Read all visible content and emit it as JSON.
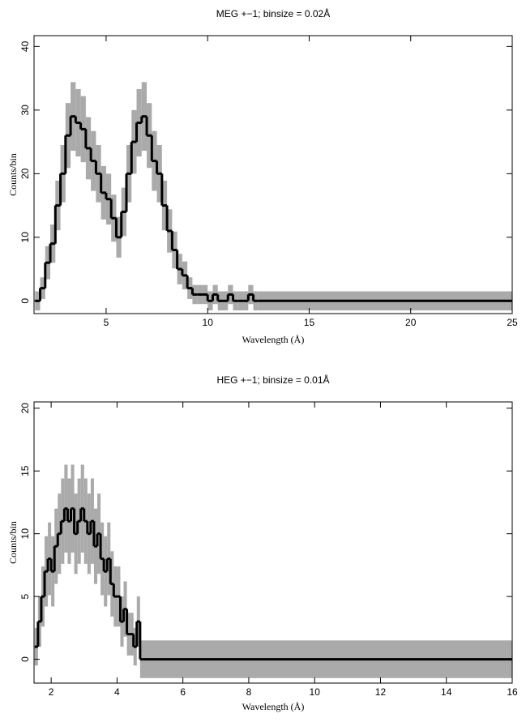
{
  "chart_data": [
    {
      "type": "histogram",
      "title": "MEG +−1; binsize = 0.02Å",
      "x_label": "Wavelength (Å)",
      "y_label": "Counts/bin",
      "xlim": [
        1.45,
        25
      ],
      "ylim": [
        -2,
        41.7
      ],
      "xticks": [
        5,
        10,
        15,
        20,
        25
      ],
      "yticks": [
        0,
        10,
        20,
        30,
        40
      ],
      "series": [
        {
          "color": "#000000",
          "error_color": "#aaaaaa",
          "bins": [
            1.5,
            1.75,
            2,
            2.25,
            2.5,
            2.75,
            3,
            3.25,
            3.5,
            3.75,
            4,
            4.25,
            4.5,
            4.75,
            5,
            5.25,
            5.5,
            5.75,
            6,
            6.25,
            6.5,
            6.75,
            7,
            7.25,
            7.5,
            7.75,
            8,
            8.25,
            8.5,
            8.75,
            9,
            9.25,
            9.5,
            9.75,
            10,
            10.25,
            10.5,
            10.75,
            11,
            11.25,
            11.5,
            11.75,
            12,
            12.25,
            12.5,
            25
          ],
          "values": [
            0,
            2,
            6,
            9,
            15,
            20,
            26,
            29,
            28,
            27,
            24,
            22,
            20,
            17,
            16,
            13,
            10,
            14,
            20,
            25,
            28,
            29,
            26,
            22,
            20,
            15,
            11,
            8,
            5,
            4,
            2,
            1,
            1,
            1,
            0,
            1,
            0,
            0,
            1,
            0,
            0,
            0,
            1,
            0,
            0
          ],
          "errors": [
            1.5,
            1.7,
            2.6,
            3,
            3.9,
            4.5,
            5.1,
            5.4,
            5.3,
            5.2,
            4.9,
            4.7,
            4.5,
            4.2,
            4,
            3.7,
            3.2,
            3.8,
            4.5,
            5,
            5.3,
            5.4,
            5.1,
            4.7,
            4.5,
            3.9,
            3.4,
            2.9,
            2.4,
            2.2,
            1.7,
            1.5,
            1.5,
            1.5,
            1.5,
            1.5,
            1.5,
            1.5,
            1.5,
            1.5,
            1.5,
            1.5,
            1.5,
            1.5,
            1.5
          ]
        }
      ]
    },
    {
      "type": "histogram",
      "title": "HEG +−1; binsize = 0.01Å",
      "x_label": "Wavelength (Å)",
      "y_label": "Counts/bin",
      "xlim": [
        1.48,
        16
      ],
      "ylim": [
        -1.9,
        20.5
      ],
      "xticks": [
        2,
        4,
        6,
        8,
        10,
        12,
        14,
        16
      ],
      "yticks": [
        0,
        5,
        10,
        15,
        20
      ],
      "series": [
        {
          "color": "#000000",
          "error_color": "#aaaaaa",
          "bins": [
            1.5,
            1.6,
            1.7,
            1.8,
            1.9,
            2,
            2.1,
            2.2,
            2.3,
            2.4,
            2.5,
            2.6,
            2.7,
            2.8,
            2.9,
            3,
            3.1,
            3.2,
            3.3,
            3.4,
            3.5,
            3.6,
            3.7,
            3.8,
            3.9,
            4,
            4.1,
            4.2,
            4.3,
            4.4,
            4.5,
            4.6,
            4.7,
            16
          ],
          "values": [
            1,
            3,
            5,
            7,
            8,
            7,
            9,
            10,
            11,
            12,
            11,
            12,
            10,
            11,
            12,
            11,
            10,
            11,
            9,
            10,
            8,
            7,
            8,
            6,
            5,
            5,
            3,
            4,
            2,
            2,
            1,
            3,
            0
          ],
          "errors": [
            1.5,
            2,
            2.4,
            2.8,
            2.9,
            2.8,
            3,
            3.2,
            3.4,
            3.5,
            3.4,
            3.5,
            3.2,
            3.4,
            3.5,
            3.4,
            3.2,
            3.4,
            3,
            3.2,
            2.9,
            2.8,
            2.9,
            2.6,
            2.4,
            2.4,
            2,
            2.2,
            1.7,
            1.7,
            1.5,
            2,
            1.5
          ]
        }
      ]
    }
  ]
}
